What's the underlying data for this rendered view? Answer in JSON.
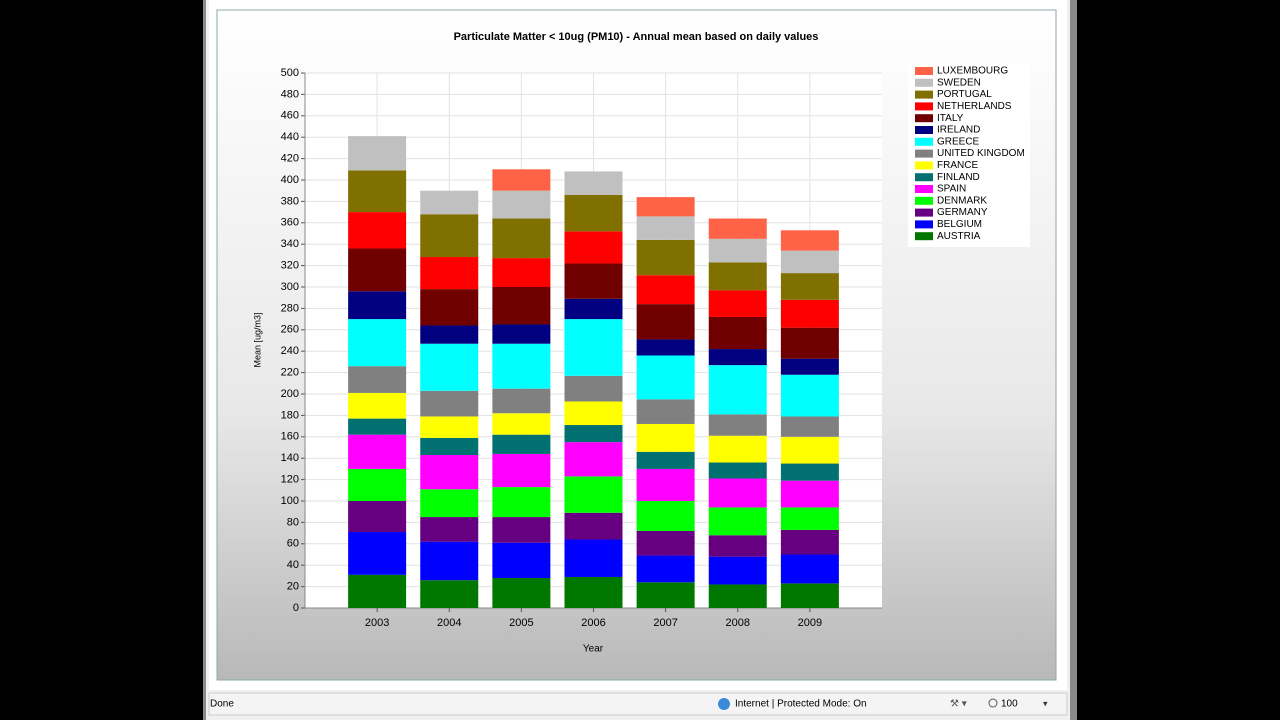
{
  "chart_data": {
    "type": "stacked_bar",
    "title": "Particulate Matter < 10ug (PM10) - Annual mean based on daily values",
    "x_label": "Year",
    "y_label": "Mean [ug/m3]",
    "categories": [
      "2003",
      "2004",
      "2005",
      "2006",
      "2007",
      "2008",
      "2009"
    ],
    "ylim": [
      0,
      500
    ],
    "yticks": [
      0,
      20,
      40,
      60,
      80,
      100,
      120,
      140,
      160,
      180,
      200,
      220,
      240,
      260,
      280,
      300,
      320,
      340,
      360,
      380,
      400,
      420,
      440,
      460,
      480,
      500
    ],
    "grid": true,
    "legend": "right",
    "series": [
      {
        "name": "AUSTRIA",
        "color": "#007800",
        "values": [
          31,
          26,
          28,
          29,
          24,
          22,
          23
        ]
      },
      {
        "name": "BELGIUM",
        "color": "#0000ff",
        "values": [
          40,
          36,
          33,
          35,
          25,
          26,
          27
        ]
      },
      {
        "name": "GERMANY",
        "color": "#660080",
        "values": [
          29,
          23,
          24,
          25,
          23,
          20,
          23
        ]
      },
      {
        "name": "DENMARK",
        "color": "#00ff00",
        "values": [
          30,
          26,
          28,
          34,
          28,
          26,
          21
        ]
      },
      {
        "name": "SPAIN",
        "color": "#ff00ff",
        "values": [
          32,
          32,
          31,
          32,
          30,
          27,
          25
        ]
      },
      {
        "name": "FINLAND",
        "color": "#007070",
        "values": [
          15,
          16,
          18,
          16,
          16,
          15,
          16
        ]
      },
      {
        "name": "FRANCE",
        "color": "#ffff00",
        "values": [
          24,
          20,
          20,
          22,
          26,
          25,
          25
        ]
      },
      {
        "name": "UNITED KINGDOM",
        "color": "#808080",
        "values": [
          25,
          24,
          23,
          24,
          23,
          20,
          19
        ]
      },
      {
        "name": "GREECE",
        "color": "#00ffff",
        "values": [
          44,
          44,
          42,
          53,
          41,
          46,
          39
        ]
      },
      {
        "name": "IRELAND",
        "color": "#000080",
        "values": [
          26,
          17,
          18,
          19,
          15,
          15,
          15
        ]
      },
      {
        "name": "ITALY",
        "color": "#700000",
        "values": [
          40,
          34,
          35,
          33,
          33,
          30,
          29
        ]
      },
      {
        "name": "NETHERLANDS",
        "color": "#ff0000",
        "values": [
          34,
          30,
          27,
          30,
          27,
          25,
          26
        ]
      },
      {
        "name": "PORTUGAL",
        "color": "#807000",
        "values": [
          39,
          40,
          37,
          34,
          33,
          26,
          25
        ]
      },
      {
        "name": "SWEDEN",
        "color": "#c0c0c0",
        "values": [
          32,
          22,
          26,
          22,
          22,
          22,
          21
        ]
      },
      {
        "name": "LUXEMBOURG",
        "color": "#ff6347",
        "values": [
          0,
          0,
          20,
          0,
          18,
          19,
          19
        ]
      }
    ]
  },
  "status_bar": {
    "status": "Done",
    "zone": "Internet | Protected Mode: On",
    "zoom": "100"
  }
}
